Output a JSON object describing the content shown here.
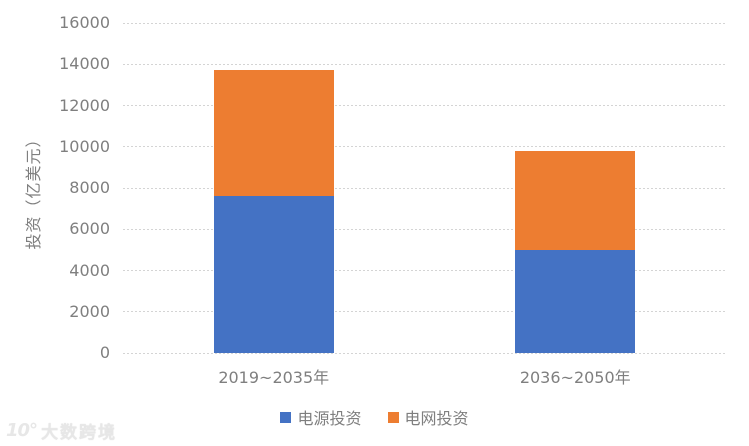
{
  "chart_data": {
    "type": "bar",
    "stacked": true,
    "title": "",
    "xlabel": "",
    "ylabel": "投资（亿美元）",
    "categories": [
      "2019~2035年",
      "2036~2050年"
    ],
    "series": [
      {
        "name": "电源投资",
        "color": "#4472C4",
        "values": [
          7600,
          5000
        ]
      },
      {
        "name": "电网投资",
        "color": "#ED7D31",
        "values": [
          6100,
          4800
        ]
      }
    ],
    "ylim": [
      0,
      16000
    ],
    "yticks": [
      0,
      2000,
      4000,
      6000,
      8000,
      10000,
      12000,
      14000,
      16000
    ],
    "grid": true,
    "gridline_color": "#d4d4d4",
    "legend_position": "bottom",
    "text_color": "#7f7f7f"
  },
  "watermark": {
    "logo": "10°",
    "text": "大数跨境"
  }
}
